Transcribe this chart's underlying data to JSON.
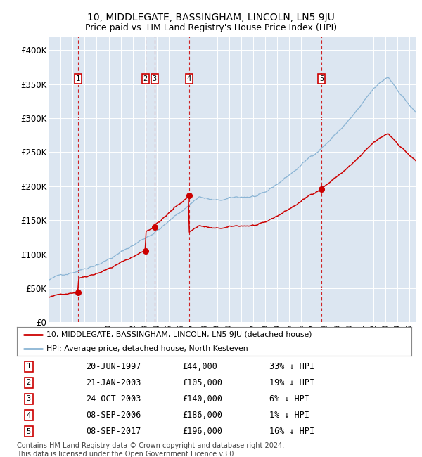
{
  "title": "10, MIDDLEGATE, BASSINGHAM, LINCOLN, LN5 9JU",
  "subtitle": "Price paid vs. HM Land Registry's House Price Index (HPI)",
  "title_fontsize": 10,
  "subtitle_fontsize": 9,
  "background_color": "#dce6f1",
  "hpi_color": "#8ab4d4",
  "price_color": "#cc0000",
  "marker_color": "#cc0000",
  "ylim": [
    0,
    420000
  ],
  "xlim_start": 1995.0,
  "xlim_end": 2025.5,
  "yticks": [
    0,
    50000,
    100000,
    150000,
    200000,
    250000,
    300000,
    350000,
    400000
  ],
  "ytick_labels": [
    "£0",
    "£50K",
    "£100K",
    "£150K",
    "£200K",
    "£250K",
    "£300K",
    "£350K",
    "£400K"
  ],
  "sale_dates": [
    1997.47,
    2003.05,
    2003.81,
    2006.68,
    2017.68
  ],
  "sale_prices": [
    44000,
    105000,
    140000,
    186000,
    196000
  ],
  "sale_labels": [
    "1",
    "2",
    "3",
    "4",
    "5"
  ],
  "sale_info": [
    {
      "label": "1",
      "date": "20-JUN-1997",
      "price": "£44,000",
      "hpi": "33% ↓ HPI"
    },
    {
      "label": "2",
      "date": "21-JAN-2003",
      "price": "£105,000",
      "hpi": "19% ↓ HPI"
    },
    {
      "label": "3",
      "date": "24-OCT-2003",
      "price": "£140,000",
      "hpi": "6% ↓ HPI"
    },
    {
      "label": "4",
      "date": "08-SEP-2006",
      "price": "£186,000",
      "hpi": "1% ↓ HPI"
    },
    {
      "label": "5",
      "date": "08-SEP-2017",
      "price": "£196,000",
      "hpi": "16% ↓ HPI"
    }
  ],
  "legend_line1": "10, MIDDLEGATE, BASSINGHAM, LINCOLN, LN5 9JU (detached house)",
  "legend_line2": "HPI: Average price, detached house, North Kesteven",
  "footer": "Contains HM Land Registry data © Crown copyright and database right 2024.\nThis data is licensed under the Open Government Licence v3.0."
}
